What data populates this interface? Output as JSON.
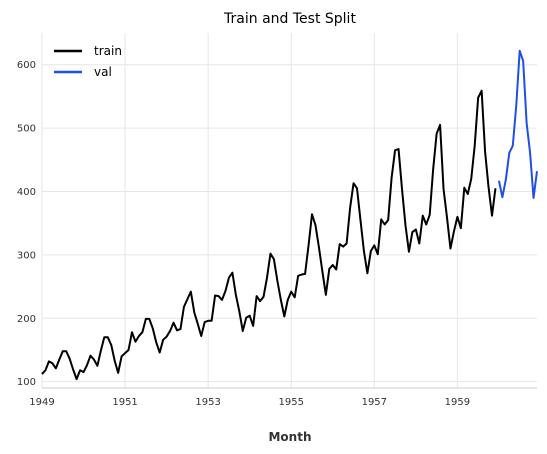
{
  "chart_data": {
    "type": "line",
    "title": "Train and Test Split",
    "xlabel": "Month",
    "ylabel": "",
    "x_ticks": [
      "1949",
      "1951",
      "1953",
      "1955",
      "1957",
      "1959"
    ],
    "y_ticks": [
      "100",
      "200",
      "300",
      "400",
      "500",
      "600"
    ],
    "xlim": [
      "1949-01",
      "1960-12"
    ],
    "ylim": [
      90,
      650
    ],
    "grid": true,
    "legend_position": "top-left",
    "series": [
      {
        "name": "train",
        "color": "#000000",
        "x": [
          "1949-01",
          "1949-02",
          "1949-03",
          "1949-04",
          "1949-05",
          "1949-06",
          "1949-07",
          "1949-08",
          "1949-09",
          "1949-10",
          "1949-11",
          "1949-12",
          "1950-01",
          "1950-02",
          "1950-03",
          "1950-04",
          "1950-05",
          "1950-06",
          "1950-07",
          "1950-08",
          "1950-09",
          "1950-10",
          "1950-11",
          "1950-12",
          "1951-01",
          "1951-02",
          "1951-03",
          "1951-04",
          "1951-05",
          "1951-06",
          "1951-07",
          "1951-08",
          "1951-09",
          "1951-10",
          "1951-11",
          "1951-12",
          "1952-01",
          "1952-02",
          "1952-03",
          "1952-04",
          "1952-05",
          "1952-06",
          "1952-07",
          "1952-08",
          "1952-09",
          "1952-10",
          "1952-11",
          "1952-12",
          "1953-01",
          "1953-02",
          "1953-03",
          "1953-04",
          "1953-05",
          "1953-06",
          "1953-07",
          "1953-08",
          "1953-09",
          "1953-10",
          "1953-11",
          "1953-12",
          "1954-01",
          "1954-02",
          "1954-03",
          "1954-04",
          "1954-05",
          "1954-06",
          "1954-07",
          "1954-08",
          "1954-09",
          "1954-10",
          "1954-11",
          "1954-12",
          "1955-01",
          "1955-02",
          "1955-03",
          "1955-04",
          "1955-05",
          "1955-06",
          "1955-07",
          "1955-08",
          "1955-09",
          "1955-10",
          "1955-11",
          "1955-12",
          "1956-01",
          "1956-02",
          "1956-03",
          "1956-04",
          "1956-05",
          "1956-06",
          "1956-07",
          "1956-08",
          "1956-09",
          "1956-10",
          "1956-11",
          "1956-12",
          "1957-01",
          "1957-02",
          "1957-03",
          "1957-04",
          "1957-05",
          "1957-06",
          "1957-07",
          "1957-08",
          "1957-09",
          "1957-10",
          "1957-11",
          "1957-12",
          "1958-01",
          "1958-02",
          "1958-03",
          "1958-04",
          "1958-05",
          "1958-06",
          "1958-07",
          "1958-08",
          "1958-09",
          "1958-10",
          "1958-11",
          "1958-12",
          "1959-01",
          "1959-02",
          "1959-03",
          "1959-04",
          "1959-05",
          "1959-06",
          "1959-07",
          "1959-08",
          "1959-09",
          "1959-10",
          "1959-11",
          "1959-12"
        ],
        "values": [
          112,
          118,
          132,
          129,
          121,
          135,
          148,
          148,
          136,
          119,
          104,
          118,
          115,
          126,
          141,
          135,
          125,
          149,
          170,
          170,
          158,
          133,
          114,
          140,
          145,
          150,
          178,
          163,
          172,
          178,
          199,
          199,
          184,
          162,
          146,
          166,
          171,
          180,
          193,
          181,
          183,
          218,
          230,
          242,
          209,
          191,
          172,
          194,
          196,
          196,
          236,
          235,
          229,
          243,
          264,
          272,
          237,
          211,
          180,
          201,
          204,
          188,
          235,
          227,
          234,
          264,
          302,
          293,
          259,
          229,
          203,
          229,
          242,
          233,
          267,
          269,
          270,
          315,
          364,
          347,
          312,
          274,
          237,
          278,
          284,
          277,
          317,
          313,
          318,
          374,
          413,
          405,
          355,
          306,
          271,
          306,
          315,
          301,
          356,
          348,
          355,
          422,
          465,
          467,
          404,
          347,
          305,
          336,
          340,
          318,
          362,
          348,
          363,
          435,
          491,
          505,
          404,
          359,
          310,
          337,
          360,
          342,
          406,
          396,
          420,
          472,
          548,
          559,
          463,
          407,
          362,
          405
        ]
      },
      {
        "name": "val",
        "color": "#1f4ee8",
        "x": [
          "1960-01",
          "1960-02",
          "1960-03",
          "1960-04",
          "1960-05",
          "1960-06",
          "1960-07",
          "1960-08",
          "1960-09",
          "1960-10",
          "1960-11",
          "1960-12"
        ],
        "values": [
          417,
          391,
          419,
          461,
          472,
          535,
          622,
          606,
          508,
          461,
          390,
          432
        ]
      }
    ]
  }
}
